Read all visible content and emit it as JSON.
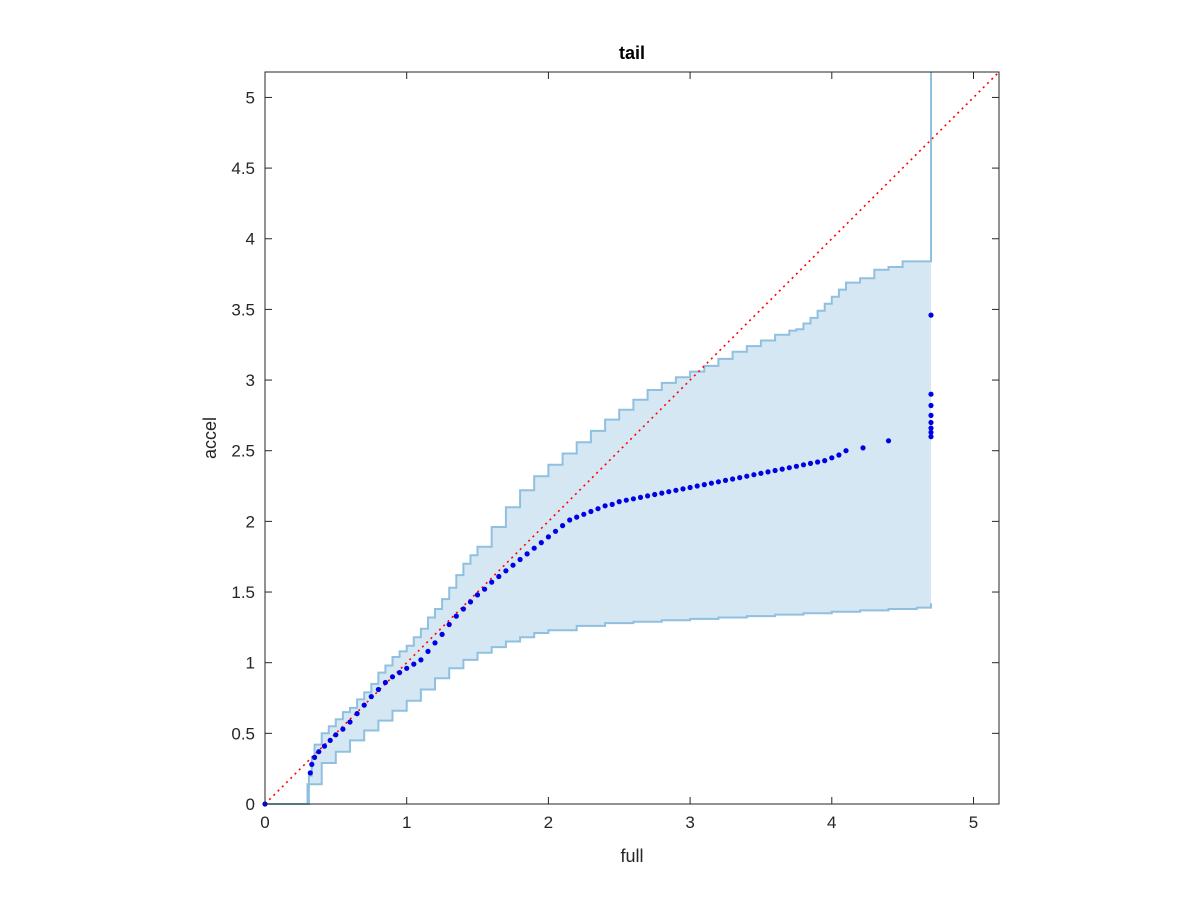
{
  "chart_data": {
    "type": "scatter",
    "title": "tail",
    "xlabel": "full",
    "ylabel": "accel",
    "xlim": [
      0,
      5.18
    ],
    "ylim": [
      0,
      5.18
    ],
    "xticks": [
      0,
      1,
      2,
      3,
      4,
      5
    ],
    "yticks": [
      0,
      0.5,
      1,
      1.5,
      2,
      2.5,
      3,
      3.5,
      4,
      4.5,
      5
    ],
    "grid": false,
    "reference_line": {
      "style": "dotted",
      "color": "#ff0000",
      "from": [
        0,
        0
      ],
      "to": [
        5.18,
        5.18
      ]
    },
    "band": {
      "fill_color": "#d6e7f4",
      "edge_color": "#8fc0e0",
      "upper": {
        "x": [
          0,
          0.31,
          0.33,
          0.35,
          0.4,
          0.45,
          0.5,
          0.55,
          0.6,
          0.65,
          0.7,
          0.75,
          0.8,
          0.85,
          0.9,
          0.95,
          1.0,
          1.05,
          1.1,
          1.15,
          1.2,
          1.25,
          1.3,
          1.35,
          1.4,
          1.45,
          1.5,
          1.6,
          1.7,
          1.8,
          1.9,
          2.0,
          2.1,
          2.2,
          2.3,
          2.4,
          2.5,
          2.6,
          2.7,
          2.8,
          2.9,
          3.0,
          3.1,
          3.2,
          3.3,
          3.4,
          3.5,
          3.6,
          3.7,
          3.75,
          3.8,
          3.85,
          3.9,
          3.95,
          4.0,
          4.05,
          4.1,
          4.2,
          4.3,
          4.4,
          4.5,
          4.6,
          4.7,
          4.7
        ],
        "y": [
          0,
          0.2,
          0.33,
          0.42,
          0.5,
          0.55,
          0.6,
          0.65,
          0.68,
          0.74,
          0.79,
          0.85,
          0.93,
          0.98,
          1.04,
          1.08,
          1.12,
          1.18,
          1.24,
          1.32,
          1.38,
          1.45,
          1.53,
          1.62,
          1.7,
          1.76,
          1.82,
          1.96,
          2.1,
          2.22,
          2.32,
          2.4,
          2.48,
          2.56,
          2.64,
          2.72,
          2.79,
          2.86,
          2.93,
          2.98,
          3.02,
          3.06,
          3.1,
          3.15,
          3.2,
          3.24,
          3.28,
          3.32,
          3.35,
          3.36,
          3.4,
          3.44,
          3.49,
          3.54,
          3.59,
          3.64,
          3.69,
          3.72,
          3.78,
          3.8,
          3.84,
          3.84,
          3.84,
          5.18
        ]
      },
      "lower": {
        "x": [
          0,
          0.3,
          0.4,
          0.5,
          0.6,
          0.7,
          0.8,
          0.9,
          1.0,
          1.1,
          1.2,
          1.3,
          1.4,
          1.5,
          1.6,
          1.7,
          1.8,
          1.9,
          2.0,
          2.2,
          2.4,
          2.6,
          2.8,
          3.0,
          3.2,
          3.4,
          3.6,
          3.8,
          4.0,
          4.2,
          4.4,
          4.6,
          4.7,
          4.7
        ],
        "y": [
          0,
          0.14,
          0.29,
          0.37,
          0.45,
          0.52,
          0.59,
          0.66,
          0.73,
          0.81,
          0.89,
          0.96,
          1.02,
          1.07,
          1.11,
          1.15,
          1.18,
          1.21,
          1.23,
          1.26,
          1.28,
          1.29,
          1.3,
          1.31,
          1.32,
          1.33,
          1.34,
          1.35,
          1.36,
          1.37,
          1.38,
          1.39,
          1.39,
          1.42
        ]
      }
    },
    "series": [
      {
        "marker_color": "#0000e6",
        "x": [
          0,
          0.32,
          0.33,
          0.35,
          0.38,
          0.42,
          0.46,
          0.5,
          0.55,
          0.6,
          0.65,
          0.7,
          0.75,
          0.8,
          0.85,
          0.9,
          0.95,
          1.0,
          1.05,
          1.1,
          1.15,
          1.2,
          1.25,
          1.3,
          1.35,
          1.4,
          1.45,
          1.5,
          1.55,
          1.6,
          1.65,
          1.7,
          1.75,
          1.8,
          1.85,
          1.9,
          1.95,
          2.0,
          2.05,
          2.1,
          2.15,
          2.2,
          2.25,
          2.3,
          2.35,
          2.4,
          2.45,
          2.5,
          2.55,
          2.6,
          2.65,
          2.7,
          2.75,
          2.8,
          2.85,
          2.9,
          2.95,
          3.0,
          3.05,
          3.1,
          3.15,
          3.2,
          3.25,
          3.3,
          3.35,
          3.4,
          3.45,
          3.5,
          3.55,
          3.6,
          3.65,
          3.7,
          3.75,
          3.8,
          3.85,
          3.9,
          3.95,
          4.0,
          4.05,
          4.1,
          4.22,
          4.4,
          4.7,
          4.7,
          4.7,
          4.7,
          4.7,
          4.7,
          4.7,
          4.7
        ],
        "y": [
          0,
          0.22,
          0.28,
          0.33,
          0.37,
          0.41,
          0.45,
          0.49,
          0.53,
          0.58,
          0.64,
          0.7,
          0.76,
          0.81,
          0.86,
          0.9,
          0.93,
          0.96,
          0.99,
          1.02,
          1.08,
          1.14,
          1.2,
          1.27,
          1.33,
          1.38,
          1.43,
          1.48,
          1.52,
          1.57,
          1.61,
          1.65,
          1.69,
          1.73,
          1.77,
          1.81,
          1.85,
          1.89,
          1.93,
          1.97,
          2.01,
          2.03,
          2.05,
          2.07,
          2.09,
          2.11,
          2.12,
          2.14,
          2.15,
          2.16,
          2.17,
          2.18,
          2.19,
          2.2,
          2.21,
          2.22,
          2.23,
          2.24,
          2.25,
          2.26,
          2.27,
          2.28,
          2.29,
          2.3,
          2.31,
          2.32,
          2.33,
          2.34,
          2.35,
          2.36,
          2.37,
          2.38,
          2.39,
          2.4,
          2.41,
          2.42,
          2.43,
          2.45,
          2.47,
          2.5,
          2.52,
          2.57,
          2.6,
          2.63,
          2.66,
          2.7,
          2.75,
          2.82,
          2.9,
          3.46
        ]
      }
    ]
  }
}
